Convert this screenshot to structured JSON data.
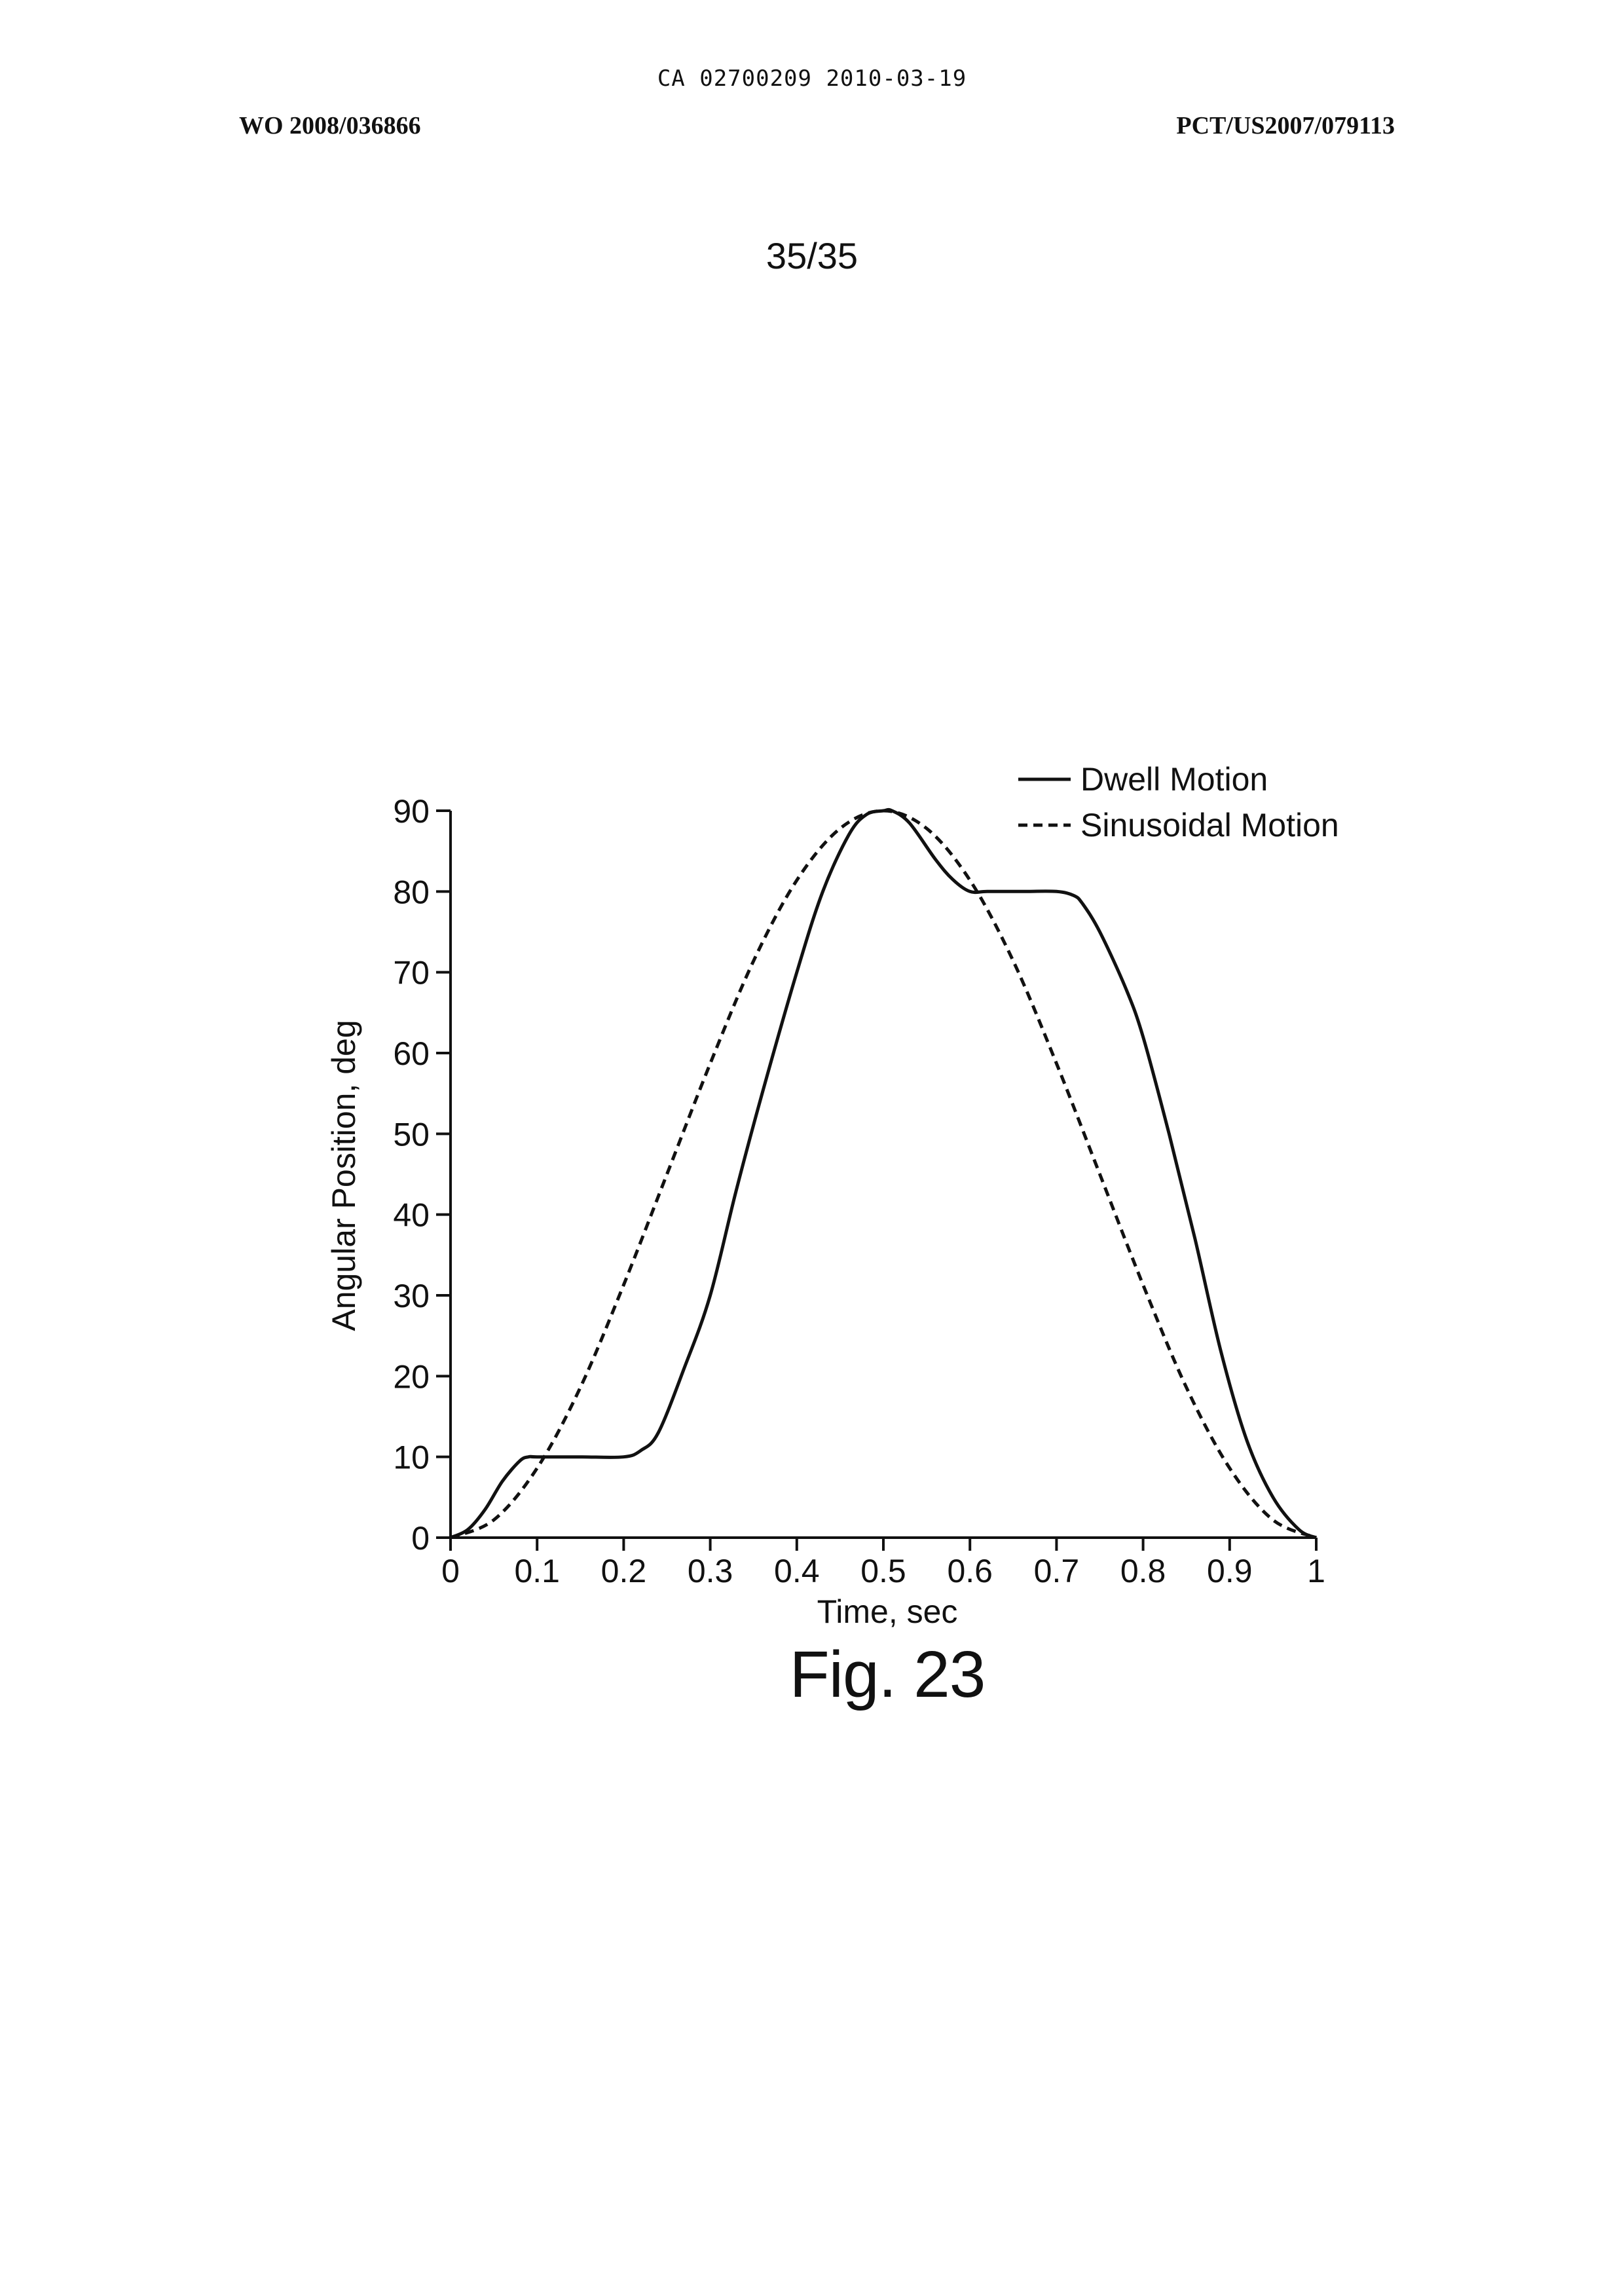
{
  "header": {
    "center": "CA 02700209 2010-03-19",
    "left": "WO 2008/036866",
    "right": "PCT/US2007/079113"
  },
  "page_number": "35/35",
  "figure_label": "Fig. 23",
  "chart_data": {
    "type": "line",
    "xlabel": "Time, sec",
    "ylabel": "Angular Position, deg",
    "xlim": [
      0,
      1
    ],
    "ylim": [
      0,
      90
    ],
    "xticks": [
      "0",
      "0.1",
      "0.2",
      "0.3",
      "0.4",
      "0.5",
      "0.6",
      "0.7",
      "0.8",
      "0.9",
      "1"
    ],
    "yticks": [
      "0",
      "10",
      "20",
      "30",
      "40",
      "50",
      "60",
      "70",
      "80",
      "90"
    ],
    "grid": false,
    "legend": "top-right",
    "series": [
      {
        "name": "Dwell Motion",
        "style": "solid",
        "x": [
          0,
          0.02,
          0.04,
          0.06,
          0.08,
          0.09,
          0.1,
          0.15,
          0.2,
          0.22,
          0.24,
          0.27,
          0.3,
          0.33,
          0.36,
          0.4,
          0.43,
          0.46,
          0.48,
          0.5,
          0.51,
          0.53,
          0.56,
          0.58,
          0.6,
          0.62,
          0.66,
          0.7,
          0.72,
          0.73,
          0.75,
          0.78,
          0.8,
          0.83,
          0.86,
          0.89,
          0.92,
          0.95,
          0.98,
          1.0
        ],
        "y": [
          0,
          1,
          3.5,
          7,
          9.5,
          10,
          10,
          10,
          10,
          10.8,
          13,
          21,
          30,
          43,
          55,
          70,
          80,
          87,
          89.5,
          90,
          90,
          88.5,
          84,
          81.5,
          80,
          80,
          80,
          80,
          79.5,
          78.5,
          75,
          68,
          62,
          50,
          37,
          23,
          12,
          5,
          1,
          0
        ]
      },
      {
        "name": "Sinusoidal Motion",
        "style": "dashed",
        "x": [
          0,
          0.05,
          0.1,
          0.15,
          0.2,
          0.25,
          0.3,
          0.35,
          0.4,
          0.45,
          0.5,
          0.55,
          0.6,
          0.65,
          0.7,
          0.75,
          0.8,
          0.85,
          0.9,
          0.95,
          1.0
        ],
        "y": [
          0,
          2.2,
          8.6,
          18.6,
          31.3,
          45,
          58.7,
          71.4,
          81.4,
          87.8,
          90,
          87.8,
          81.4,
          71.4,
          58.7,
          45,
          31.3,
          18.6,
          8.6,
          2.2,
          0
        ]
      }
    ]
  }
}
